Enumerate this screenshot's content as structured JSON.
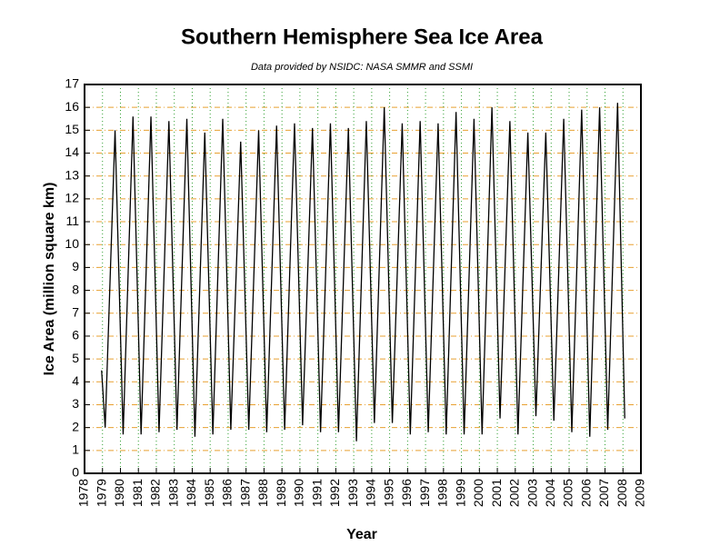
{
  "chart_data": {
    "type": "line",
    "title": "Southern Hemisphere Sea Ice Area",
    "subtitle": "Data provided by NSIDC: NASA SMMR and SSMI",
    "x_label": "Year",
    "y_label": "Ice Area (million square km)",
    "x": [
      1978.95,
      1979.15,
      1979.7,
      1980.15,
      1980.7,
      1981.15,
      1981.7,
      1982.15,
      1982.7,
      1983.15,
      1983.7,
      1984.15,
      1984.7,
      1985.15,
      1985.7,
      1986.15,
      1986.7,
      1987.15,
      1987.7,
      1988.15,
      1988.7,
      1989.15,
      1989.7,
      1990.15,
      1990.7,
      1991.15,
      1991.7,
      1992.15,
      1992.7,
      1993.15,
      1993.7,
      1994.15,
      1994.7,
      1995.15,
      1995.7,
      1996.15,
      1996.7,
      1997.15,
      1997.7,
      1998.15,
      1998.7,
      1999.15,
      1999.7,
      2000.15,
      2000.7,
      2001.15,
      2001.7,
      2002.15,
      2002.7,
      2003.15,
      2003.7,
      2004.15,
      2004.7,
      2005.15,
      2005.7,
      2006.15,
      2006.7,
      2007.15,
      2007.7,
      2008.1
    ],
    "series": [
      {
        "name": "Ice Area",
        "color": "#000000",
        "values": [
          4.5,
          2.0,
          15.0,
          1.7,
          15.6,
          1.7,
          15.6,
          1.8,
          15.4,
          1.9,
          15.5,
          1.6,
          14.9,
          1.7,
          15.5,
          1.9,
          14.5,
          1.9,
          15.0,
          1.8,
          15.2,
          1.9,
          15.3,
          2.1,
          15.1,
          1.8,
          15.3,
          1.8,
          15.1,
          1.4,
          15.4,
          2.2,
          16.0,
          2.2,
          15.3,
          1.7,
          15.4,
          1.8,
          15.3,
          1.7,
          15.8,
          1.7,
          15.5,
          1.7,
          16.0,
          2.4,
          15.4,
          1.7,
          14.9,
          2.5,
          14.9,
          2.3,
          15.5,
          1.8,
          15.9,
          1.6,
          16.0,
          1.9,
          16.2,
          2.4
        ]
      }
    ],
    "xlim": [
      1978,
      2009
    ],
    "xticks": [
      1978,
      1979,
      1980,
      1981,
      1982,
      1983,
      1984,
      1985,
      1986,
      1987,
      1988,
      1989,
      1990,
      1991,
      1992,
      1993,
      1994,
      1995,
      1996,
      1997,
      1998,
      1999,
      2000,
      2001,
      2002,
      2003,
      2004,
      2005,
      2006,
      2007,
      2008,
      2009
    ],
    "ylim": [
      0,
      17
    ],
    "yticks": [
      0,
      1,
      2,
      3,
      4,
      5,
      6,
      7,
      8,
      9,
      10,
      11,
      12,
      13,
      14,
      15,
      16,
      17
    ],
    "grid": true,
    "x_grid_color": "#2e9e2e",
    "y_grid_color": "#e8a030"
  }
}
